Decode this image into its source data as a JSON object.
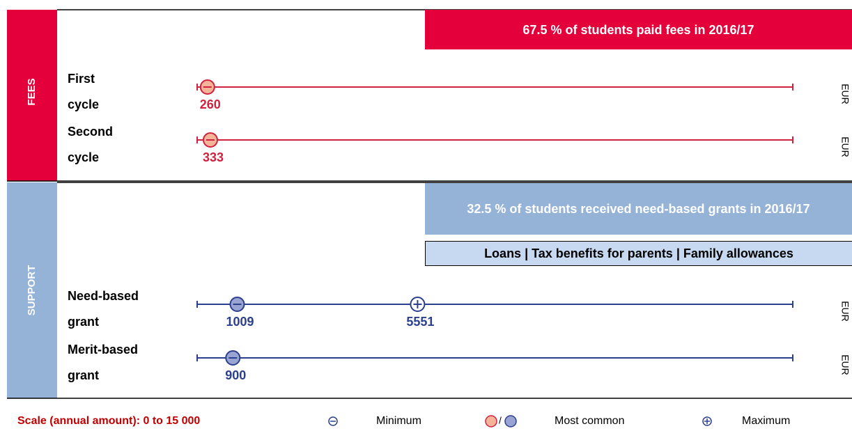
{
  "sections": [
    {
      "label": "FEES",
      "theme": "fees",
      "banner": "67.5 % of students paid fees in 2016/17",
      "rows": [
        {
          "label_lines": [
            "First",
            "cycle"
          ],
          "unit": "EUR",
          "markers": [
            {
              "kind": "minimum",
              "value": 260
            }
          ]
        },
        {
          "label_lines": [
            "Second",
            "cycle"
          ],
          "unit": "EUR",
          "markers": [
            {
              "kind": "minimum",
              "value": 333
            }
          ]
        }
      ]
    },
    {
      "label": "SUPPORT",
      "theme": "support",
      "banner": "32.5 % of students received need-based grants in 2016/17",
      "sub_banner": "Loans | Tax benefits for parents | Family allowances",
      "rows": [
        {
          "label_lines": [
            "Need-based",
            "grant"
          ],
          "unit": "EUR",
          "markers": [
            {
              "kind": "minimum",
              "value": 1009
            },
            {
              "kind": "maximum",
              "value": 5551
            }
          ]
        },
        {
          "label_lines": [
            "Merit-based",
            "grant"
          ],
          "unit": "EUR",
          "markers": [
            {
              "kind": "minimum",
              "value": 900
            }
          ]
        }
      ]
    }
  ],
  "scale_min": 0,
  "scale_max": 15000,
  "legend": {
    "scale": "Scale (annual amount): 0 to 15 000",
    "minimum": "Minimum",
    "separator": "/",
    "most_common": "Most common",
    "maximum": "Maximum"
  }
}
